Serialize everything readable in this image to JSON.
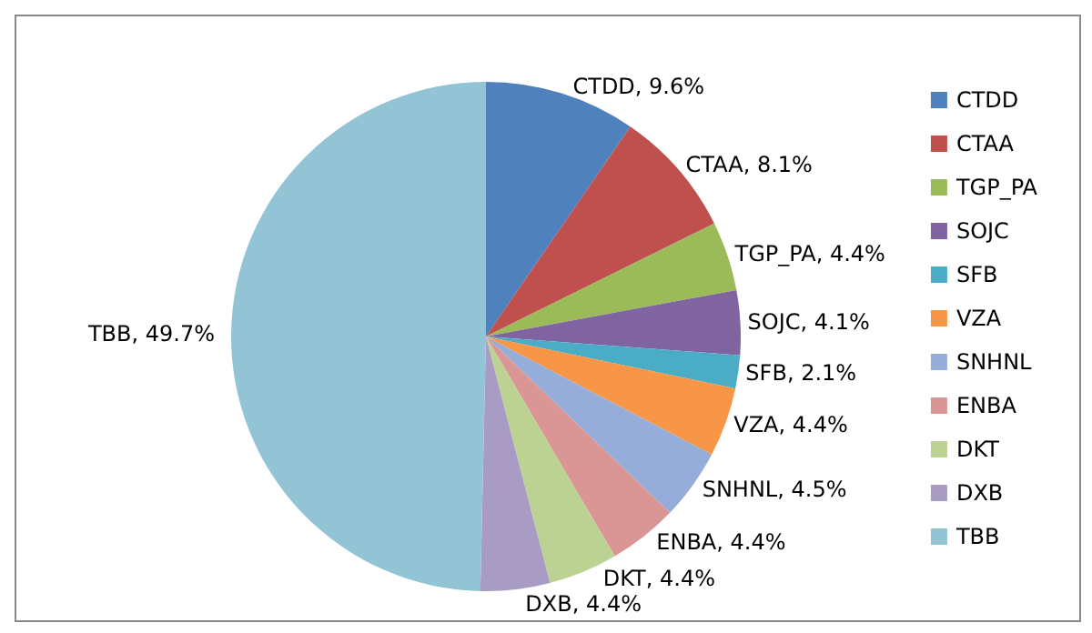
{
  "chart_data": {
    "type": "pie",
    "categories": [
      "CTDD",
      "CTAA",
      "TGP_PA",
      "SOJC",
      "SFB",
      "VZA",
      "SNHNL",
      "ENBA",
      "DKT",
      "DXB",
      "TBB"
    ],
    "values": [
      9.6,
      8.1,
      4.4,
      4.1,
      2.1,
      4.4,
      4.5,
      4.4,
      4.4,
      4.4,
      49.7
    ],
    "colors": [
      "#4f81bd",
      "#c0504d",
      "#9bbb59",
      "#8064a2",
      "#4bacc6",
      "#f79646",
      "#95add8",
      "#d99694",
      "#bcd292",
      "#a89cc4",
      "#93c4d6"
    ],
    "value_labels": [
      "CTDD, 9.6%",
      "CTAA, 8.1%",
      "TGP_PA, 4.4%",
      "SOJC, 4.1%",
      "SFB, 2.1%",
      "VZA, 4.4%",
      "SNHNL, 4.5%",
      "ENBA, 4.4%",
      "DKT, 4.4%",
      "DXB, 4.4%",
      "TBB, 49.7%"
    ],
    "legend": "right"
  }
}
